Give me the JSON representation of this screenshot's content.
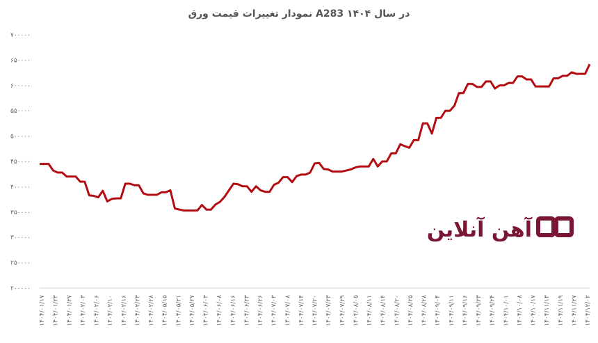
{
  "chart_data": {
    "type": "line",
    "title": "نمودار تغییرات قیمت ورق A283 در سال ۱۴۰۴",
    "xlabel": "",
    "ylabel": "",
    "ylim": [
      200000,
      700000
    ],
    "y_ticks": [
      200000,
      250000,
      300000,
      350000,
      400000,
      450000,
      500000,
      550000,
      600000,
      650000,
      700000
    ],
    "y_tick_labels": [
      "۲۰۰۰۰۰",
      "۲۵۰۰۰۰",
      "۳۰۰۰۰۰",
      "۳۵۰۰۰۰",
      "۴۰۰۰۰۰",
      "۴۵۰۰۰۰",
      "۵۰۰۰۰۰",
      "۵۵۰۰۰۰",
      "۶۰۰۰۰۰",
      "۶۵۰۰۰۰",
      "۷۰۰۰۰۰"
    ],
    "x_tick_labels": [
      "۱۴۰۴/۰۱/۱۷",
      "۱۴۰۴/۰۱/۲۳",
      "۱۴۰۴/۰۱/۲۷",
      "۱۴۰۴/۰۲/۰۳",
      "۱۴۰۴/۰۲/۰۶",
      "۱۴۰۴/۰۲/۱۰",
      "۱۴۰۴/۰۲/۱۶",
      "۱۴۰۴/۰۲/۲۳",
      "۱۴۰۴/۰۲/۲۸",
      "۱۴۰۴/۰۵/۱۵",
      "۱۴۰۴/۰۵/۲۱",
      "۱۴۰۴/۰۵/۲۷",
      "۱۴۰۴/۰۶/۰۳",
      "۱۴۰۴/۰۶/۰۸",
      "۱۴۰۴/۰۶/۱۶",
      "۱۴۰۴/۰۶/۲۳",
      "۱۴۰۴/۰۶/۲۶",
      "۱۴۰۴/۰۷/۰۳",
      "۱۴۰۴/۰۷/۰۸",
      "۱۴۰۴/۰۷/۱۴",
      "۱۴۰۴/۰۷/۲۰",
      "۱۴۰۴/۰۷/۲۳",
      "۱۴۰۴/۰۷/۲۹",
      "۱۴۰۴/۰۸/۰۵",
      "۱۴۰۴/۰۸/۱۱",
      "۱۴۰۴/۰۸/۱۴",
      "۱۴۰۴/۰۸/۲۰",
      "۱۴۰۴/۰۸/۲۵",
      "۱۴۰۴/۰۸/۲۸",
      "۱۴۰۴/۰۹/۰۴",
      "۱۴۰۴/۰۹/۱۱",
      "۱۴۰۴/۰۹/۱۶",
      "۱۴۰۴/۰۹/۲۳",
      "۱۴۰۴/۰۹/۲۴",
      "۱۴۰۴/۱۰/۰۱",
      "۱۴۰۴/۱۰/۰۸",
      "۱۴۰۴/۱۰/۱۷",
      "۱۴۰۴/۱۱/۱۳",
      "۱۴۰۴/۱۱/۱۹",
      "۱۴۰۴/۱۱/۲۷",
      "۱۴۰۴/۱۲/۰۲"
    ],
    "series": [
      {
        "color": "#b30d12",
        "values": [
          445000,
          445000,
          445000,
          432000,
          428000,
          428000,
          420000,
          420000,
          420000,
          410000,
          410000,
          383000,
          382000,
          379000,
          392000,
          371000,
          376000,
          377000,
          377000,
          406000,
          406000,
          403000,
          403000,
          387000,
          384000,
          384000,
          384000,
          389000,
          389000,
          393000,
          357000,
          355000,
          353000,
          353000,
          353000,
          353000,
          364000,
          355000,
          355000,
          365000,
          370000,
          380000,
          393000,
          406000,
          405000,
          401000,
          401000,
          390000,
          401000,
          393000,
          390000,
          390000,
          404000,
          408000,
          419000,
          419000,
          409000,
          421000,
          424000,
          424000,
          428000,
          446000,
          447000,
          435000,
          434000,
          430000,
          430000,
          430000,
          432000,
          434000,
          438000,
          440000,
          440000,
          440000,
          455000,
          440000,
          450000,
          450000,
          466000,
          466000,
          484000,
          480000,
          477000,
          492000,
          492000,
          525000,
          525000,
          505000,
          536000,
          536000,
          550000,
          550000,
          560000,
          585000,
          585000,
          603000,
          603000,
          597000,
          597000,
          608000,
          608000,
          594000,
          600000,
          600000,
          605000,
          605000,
          618000,
          618000,
          612000,
          612000,
          598000,
          598000,
          598000,
          598000,
          614000,
          614000,
          619000,
          619000,
          626000,
          623000,
          623000,
          623000,
          642000
        ]
      }
    ],
    "grid": false,
    "legend": "none"
  },
  "watermark": {
    "text": "آهن آنلاین",
    "color": "#7a1633"
  }
}
